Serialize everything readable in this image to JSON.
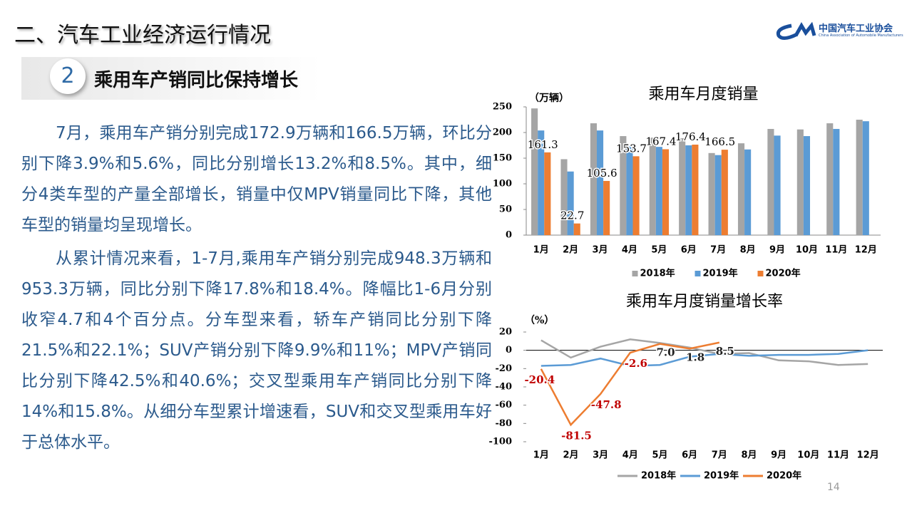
{
  "header": {
    "title": "二、汽车工业经济运行情况",
    "org_name": "中国汽车工业协会",
    "org_name_en": "China Association of Automobile Manufacturers"
  },
  "section": {
    "number": "2",
    "title": "乘用车产销同比保持增长"
  },
  "body": {
    "paragraphs": [
      "7月，乘用车产销分别完成172.9万辆和166.5万辆，环比分别下降3.9%和5.6%，同比分别增长13.2%和8.5%。其中，细分4类车型的产量全部增长，销量中仅MPV销量同比下降，其他车型的销量均呈现增长。",
      "从累计情况来看，1-7月,乘用车产销分别完成948.3万辆和953.3万辆，同比分别下降17.8%和18.4%。降幅比1-6月分别收窄4.7和4个百分点。分车型来看，轿车产销同比分别下降21.5%和22.1%；SUV产销分别下降9.9%和11%；MPV产销同比分别下降42.5%和40.6%；交叉型乘用车产销同比分别下降14%和15.8%。从细分车型累计增速看，SUV和交叉型乘用车好于总体水平。"
    ]
  },
  "page_number": "14",
  "chart_data": [
    {
      "type": "bar",
      "title": "乘用车月度销量",
      "y_label": "（万辆）",
      "categories": [
        "1月",
        "2月",
        "3月",
        "4月",
        "5月",
        "6月",
        "7月",
        "8月",
        "9月",
        "10月",
        "11月",
        "12月"
      ],
      "series": [
        {
          "name": "2018年",
          "color": "#a5a5a5",
          "values": [
            247,
            148,
            218,
            193,
            190,
            189,
            160,
            179,
            207,
            206,
            218,
            225
          ]
        },
        {
          "name": "2019年",
          "color": "#5b9bd5",
          "values": [
            204,
            124,
            204,
            173,
            172,
            175,
            156,
            167,
            194,
            193,
            207,
            222
          ]
        },
        {
          "name": "2020年",
          "color": "#ed7d31",
          "values": [
            161.3,
            22.7,
            105.6,
            153.7,
            167.4,
            176.4,
            166.5,
            null,
            null,
            null,
            null,
            null
          ]
        }
      ],
      "ylim": [
        0,
        250
      ],
      "yticks": [
        0,
        50,
        100,
        150,
        200,
        250
      ],
      "legend": "bottom"
    },
    {
      "type": "line",
      "title": "乘用车月度销量增长率",
      "y_label": "（%）",
      "categories": [
        "1月",
        "2月",
        "3月",
        "4月",
        "5月",
        "6月",
        "7月",
        "8月",
        "9月",
        "10月",
        "11月",
        "12月"
      ],
      "series": [
        {
          "name": "2018年",
          "color": "#a5a5a5",
          "values": [
            11,
            -8,
            4,
            12,
            8,
            3,
            -4,
            -3,
            -11,
            -12,
            -16,
            -15
          ]
        },
        {
          "name": "2019年",
          "color": "#5b9bd5",
          "values": [
            -17,
            -16,
            -9,
            -17,
            -16,
            -7,
            -4,
            -6,
            -5,
            -5,
            -4,
            0
          ]
        },
        {
          "name": "2020年",
          "color": "#ed7d31",
          "values": [
            -20.4,
            -81.5,
            -47.8,
            -2.6,
            7.0,
            1.8,
            8.5,
            null,
            null,
            null,
            null,
            null
          ],
          "value_labels": [
            "-20.4",
            "-81.5",
            "-47.8",
            "-2.6",
            "7.0",
            "1.8",
            "8.5",
            null,
            null,
            null,
            null,
            null
          ]
        }
      ],
      "ylim": [
        -100,
        20
      ],
      "yticks": [
        -100,
        -80,
        -60,
        -40,
        -20,
        0,
        20
      ],
      "legend": "bottom"
    }
  ]
}
